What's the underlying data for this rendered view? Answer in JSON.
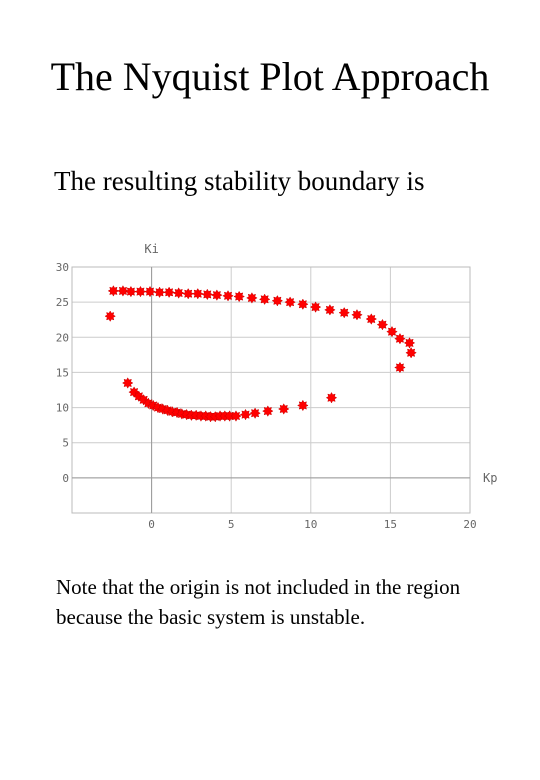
{
  "slide": {
    "title": "The Nyquist Plot Approach",
    "subtitle": "The resulting stability boundary is",
    "note": "Note that the origin is not included in the region because the basic system is unstable."
  },
  "chart_data": {
    "type": "scatter",
    "xlabel": "Kp",
    "ylabel": "Ki",
    "xlim": [
      -5,
      20
    ],
    "ylim": [
      -5,
      30
    ],
    "xticks": [
      0,
      5,
      10,
      15,
      20
    ],
    "yticks": [
      0,
      5,
      10,
      15,
      20,
      25,
      30
    ],
    "grid": true,
    "marker_color": "#ff0000",
    "points": [
      [
        -2.6,
        23.0
      ],
      [
        -2.4,
        26.6
      ],
      [
        -1.8,
        26.6
      ],
      [
        -1.3,
        26.5
      ],
      [
        -0.7,
        26.5
      ],
      [
        -0.1,
        26.5
      ],
      [
        0.5,
        26.4
      ],
      [
        1.1,
        26.4
      ],
      [
        1.7,
        26.3
      ],
      [
        2.3,
        26.2
      ],
      [
        2.9,
        26.2
      ],
      [
        3.5,
        26.1
      ],
      [
        4.1,
        26.0
      ],
      [
        4.8,
        25.9
      ],
      [
        5.5,
        25.8
      ],
      [
        6.3,
        25.6
      ],
      [
        7.1,
        25.4
      ],
      [
        7.9,
        25.2
      ],
      [
        8.7,
        25.0
      ],
      [
        9.5,
        24.7
      ],
      [
        10.3,
        24.3
      ],
      [
        11.2,
        23.9
      ],
      [
        12.1,
        23.5
      ],
      [
        12.9,
        23.2
      ],
      [
        13.8,
        22.6
      ],
      [
        14.5,
        21.8
      ],
      [
        15.1,
        20.8
      ],
      [
        15.6,
        19.8
      ],
      [
        16.2,
        19.2
      ],
      [
        16.3,
        17.8
      ],
      [
        15.6,
        15.7
      ],
      [
        -1.5,
        13.5
      ],
      [
        -1.1,
        12.2
      ],
      [
        -0.8,
        11.6
      ],
      [
        -0.5,
        11.1
      ],
      [
        -0.2,
        10.6
      ],
      [
        0.1,
        10.3
      ],
      [
        0.4,
        10.0
      ],
      [
        0.7,
        9.8
      ],
      [
        1.0,
        9.6
      ],
      [
        1.3,
        9.4
      ],
      [
        1.6,
        9.3
      ],
      [
        1.9,
        9.1
      ],
      [
        2.2,
        9.0
      ],
      [
        2.5,
        8.9
      ],
      [
        2.8,
        8.9
      ],
      [
        3.1,
        8.8
      ],
      [
        3.4,
        8.8
      ],
      [
        3.7,
        8.7
      ],
      [
        4.0,
        8.7
      ],
      [
        4.3,
        8.8
      ],
      [
        4.6,
        8.8
      ],
      [
        4.9,
        8.8
      ],
      [
        5.3,
        8.8
      ],
      [
        5.9,
        9.0
      ],
      [
        6.5,
        9.2
      ],
      [
        7.3,
        9.5
      ],
      [
        8.3,
        9.8
      ],
      [
        9.5,
        10.3
      ],
      [
        11.3,
        11.4
      ]
    ]
  }
}
